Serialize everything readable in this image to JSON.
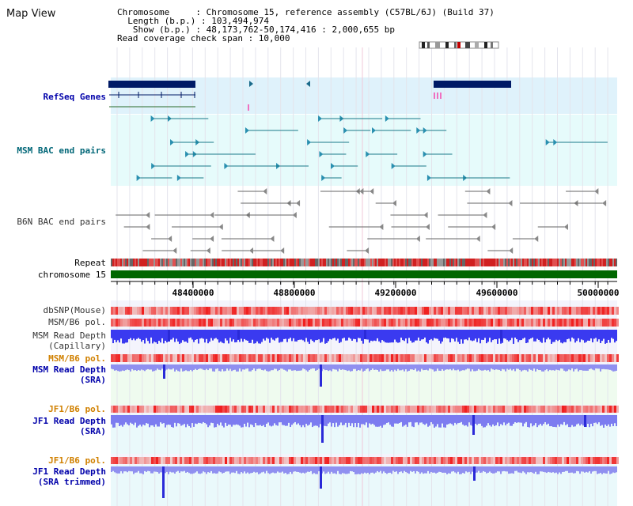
{
  "window_title": "Map View",
  "info": {
    "line1": "Chromosome     : Chromosome 15, reference assembly (C57BL/6J) (Build 37)",
    "line2": "  Length (b.p.) : 103,494,974",
    "line3": "   Show (b.p.) : 48,173,762-50,174,416 : 2,000,655 bp",
    "line4": "Read coverage check span : 10,000"
  },
  "tracks": {
    "refseq": "RefSeq Genes",
    "msm_bac": "MSM BAC end pairs",
    "b6n_bac": "B6N BAC end pairs",
    "repeat": "Repeat",
    "chromosome": "chromosome 15",
    "dbsnp": "dbSNP(Mouse)",
    "msm_b6_pol": "MSM/B6 pol.",
    "msm_depth_cap1": "MSM Read Depth",
    "msm_depth_cap2": "(Capillary)",
    "msm_b6_pol2": "MSM/B6 pol.",
    "msm_sra1": "MSM Read Depth",
    "msm_sra2": "(SRA)",
    "jf1_pol": "JF1/B6 pol.",
    "jf1_sra1": "JF1 Read Depth",
    "jf1_sra2": "(SRA)",
    "jf1_pol2": "JF1/B6 pol.",
    "jf1_trim1": "JF1 Read Depth",
    "jf1_trim2": "(SRA trimmed)"
  },
  "scale_ticks": [
    "48400000",
    "48800000",
    "49200000",
    "49600000",
    "50000000"
  ],
  "colors": {
    "refseq_bg": "#dff2fb",
    "msm_bg": "#e6fbfb",
    "b6n_bg": "#ffffff",
    "gene": "#001a66",
    "chrom": "#006600",
    "depth_blue": "#3a3af0",
    "depth_light": "#9090f0",
    "snp_red": "#e83030"
  }
}
